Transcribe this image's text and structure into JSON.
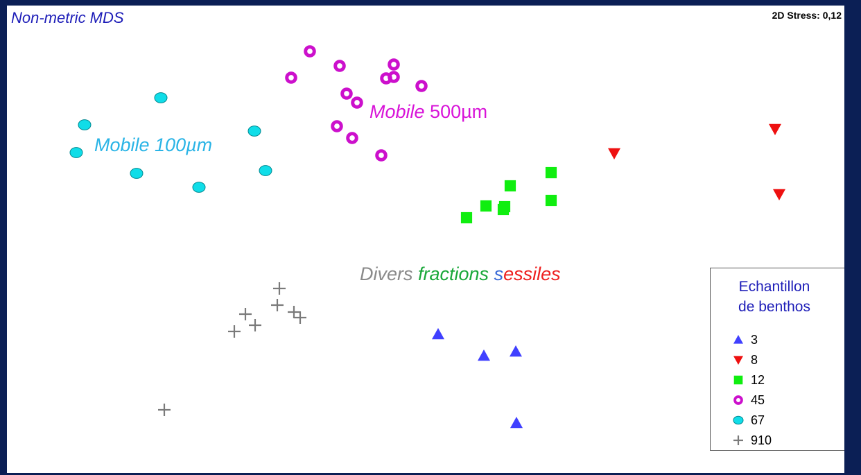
{
  "header": {
    "title": "Non-metric MDS",
    "stress": "2D Stress: 0,12"
  },
  "annotations": {
    "mobile100": "Mobile 100µm",
    "mobile500_a": "Mobile",
    "mobile500_b": " 500µm",
    "sessile_a": "Divers ",
    "sessile_b": "fractions ",
    "sessile_c": "s",
    "sessile_d": "essiles"
  },
  "legend": {
    "title_line1": "Echantillon",
    "title_line2": "de benthos",
    "items": [
      {
        "label": "3",
        "marker": "triangle-up",
        "color": "#4040ff"
      },
      {
        "label": "8",
        "marker": "triangle-down",
        "color": "#ee1010"
      },
      {
        "label": "12",
        "marker": "square",
        "color": "#10ee10"
      },
      {
        "label": "45",
        "marker": "ring",
        "color": "#cc10cc"
      },
      {
        "label": "67",
        "marker": "circle",
        "color": "#10dde8"
      },
      {
        "label": "910",
        "marker": "plus",
        "color": "#7a7a7a"
      }
    ]
  },
  "chart_data": {
    "type": "scatter",
    "title": "Non-metric MDS",
    "subtitle": "2D Stress: 0,12",
    "xlabel": "",
    "ylabel": "",
    "grid": false,
    "legend_position": "bottom-right",
    "series": [
      {
        "name": "3",
        "marker": "triangle-up",
        "color": "#4040ff",
        "points": [
          [
            622,
            474
          ],
          [
            688,
            505
          ],
          [
            734,
            499
          ],
          [
            735,
            602
          ]
        ]
      },
      {
        "name": "8",
        "marker": "triangle-down",
        "color": "#ee1010",
        "points": [
          [
            876,
            213
          ],
          [
            1108,
            178
          ],
          [
            1114,
            272
          ]
        ]
      },
      {
        "name": "12",
        "marker": "square",
        "color": "#10ee10",
        "points": [
          [
            785,
            241
          ],
          [
            785,
            281
          ],
          [
            726,
            260
          ],
          [
            691,
            289
          ],
          [
            716,
            294
          ],
          [
            718,
            290
          ],
          [
            663,
            306
          ]
        ]
      },
      {
        "name": "45",
        "marker": "ring",
        "color": "#cc10cc",
        "points": [
          [
            437,
            66
          ],
          [
            480,
            87
          ],
          [
            558,
            85
          ],
          [
            547,
            105
          ],
          [
            558,
            103
          ],
          [
            410,
            104
          ],
          [
            598,
            116
          ],
          [
            490,
            127
          ],
          [
            505,
            140
          ],
          [
            476,
            174
          ],
          [
            498,
            191
          ],
          [
            540,
            216
          ]
        ]
      },
      {
        "name": "67",
        "marker": "circle",
        "color": "#10dde8",
        "points": [
          [
            222,
            133
          ],
          [
            112,
            172
          ],
          [
            357,
            181
          ],
          [
            100,
            212
          ],
          [
            187,
            242
          ],
          [
            373,
            238
          ],
          [
            277,
            262
          ]
        ]
      },
      {
        "name": "910",
        "marker": "plus",
        "color": "#7a7a7a",
        "points": [
          [
            393,
            408
          ],
          [
            390,
            432
          ],
          [
            344,
            445
          ],
          [
            414,
            442
          ],
          [
            423,
            450
          ],
          [
            358,
            461
          ],
          [
            328,
            470
          ],
          [
            227,
            583
          ]
        ]
      }
    ]
  }
}
